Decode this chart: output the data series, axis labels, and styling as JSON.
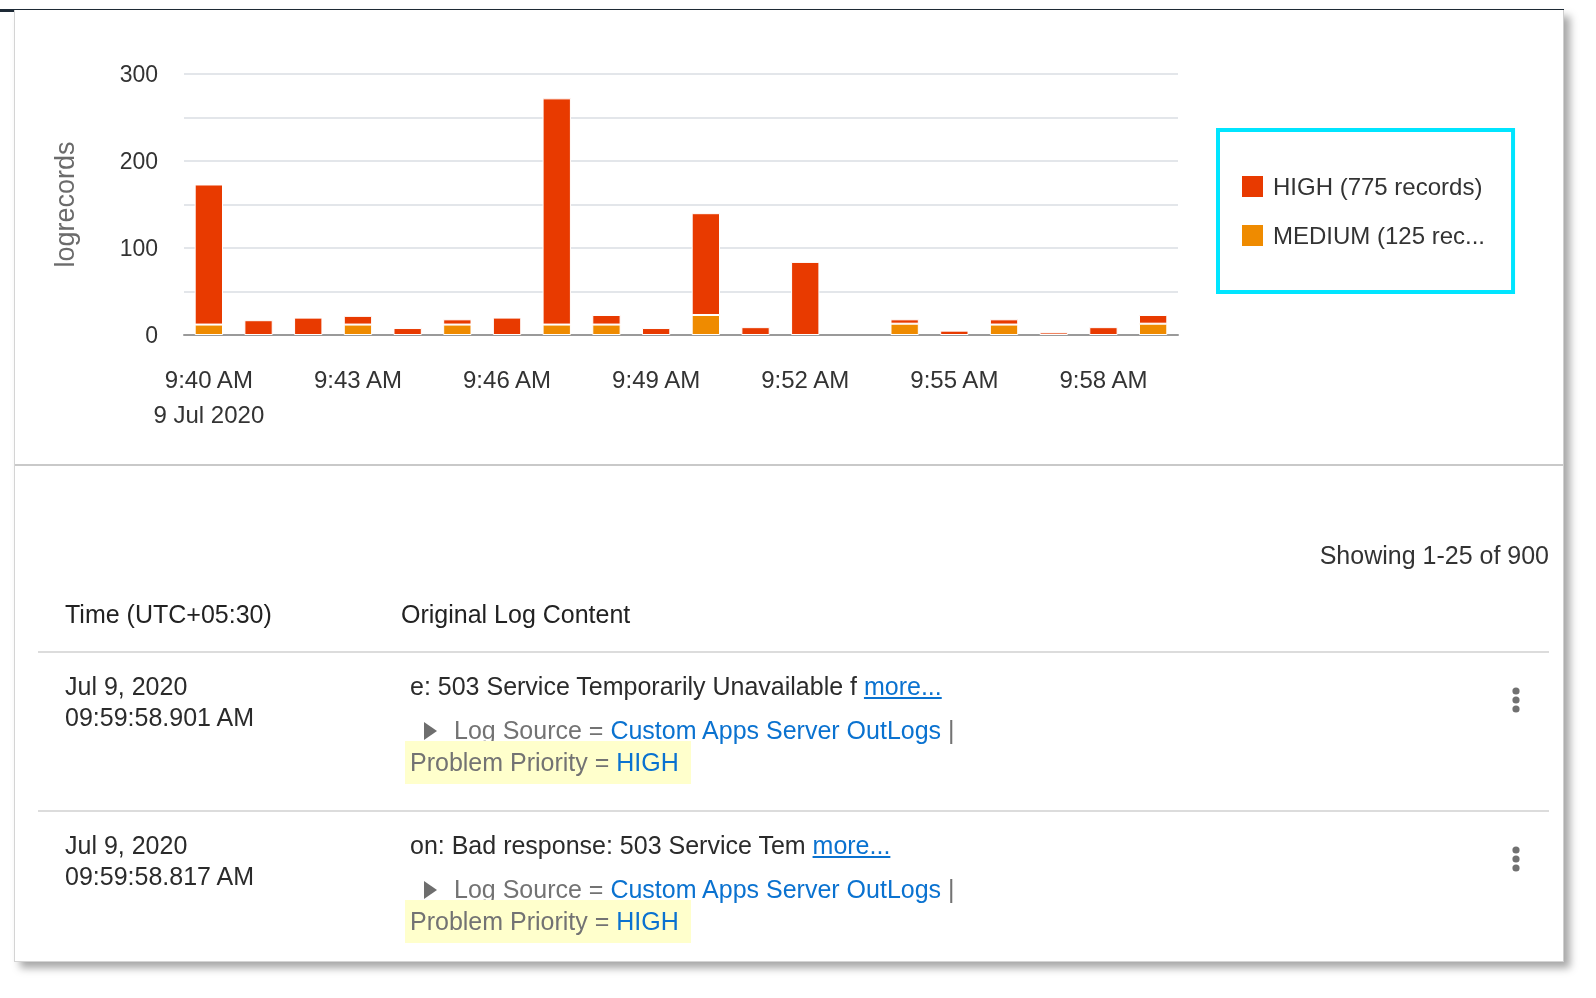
{
  "chart_data": [
    {
      "type": "bar",
      "ylabel": "logrecords",
      "categories": [
        "9:40 AM\n9 Jul 2020",
        null,
        null,
        "9:43 AM",
        null,
        null,
        "9:46 AM",
        null,
        null,
        "9:49 AM",
        null,
        null,
        "9:52 AM",
        null,
        null,
        "9:55 AM",
        null,
        null,
        "9:58 AM",
        null
      ],
      "series": [
        {
          "name": "MEDIUM (125 rec...",
          "color": "#ef8b00",
          "values": [
            12,
            null,
            null,
            12,
            null,
            12,
            null,
            12,
            12,
            null,
            23,
            null,
            null,
            null,
            13,
            null,
            12,
            null,
            null,
            13
          ]
        },
        {
          "name": "HIGH (775 records)",
          "color": "#e83a00",
          "values": [
            161,
            17,
            20,
            10,
            8,
            6,
            20,
            260,
            11,
            8,
            117,
            9,
            84,
            null,
            5,
            5,
            6,
            3,
            9,
            10
          ]
        }
      ],
      "stacked": true,
      "ylim": [
        0,
        300
      ],
      "yticks": [
        0,
        {
          "value": 50,
          "label": null
        },
        100,
        {
          "value": 150,
          "label": null
        },
        200,
        {
          "value": 250,
          "label": null
        },
        300
      ],
      "grid": "y",
      "legend": "right"
    },
    {
      "type": "other",
      "annotations": [
        "Showing 1-25 of 900",
        "Time (UTC+05:30)",
        "Original Log Content",
        "Jul 9, 2020",
        "09:59:58.901 AM",
        "e: 503 Service Temporarily Unavailable f",
        "more...",
        "Log Source = Custom Apps Server OutLogs | Problem Priority = HIGH",
        "Jul 9, 2020",
        "09:59:58.817 AM",
        "on: Bad response: 503 Service Tem",
        "more...",
        "Log Source = Custom Apps Server OutLogs | Problem Priority = HIGH"
      ]
    }
  ]
}
